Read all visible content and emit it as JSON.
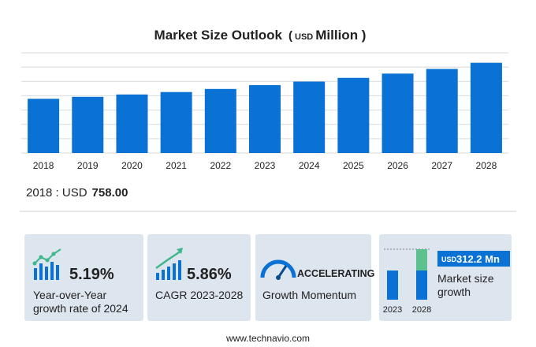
{
  "chart_data": {
    "type": "bar",
    "title": "Market Size Outlook",
    "unit_open": "(",
    "unit_currency": "USD",
    "unit_close": "Million )",
    "categories": [
      "2018",
      "2019",
      "2020",
      "2021",
      "2022",
      "2023",
      "2024",
      "2025",
      "2026",
      "2027",
      "2028"
    ],
    "values": [
      758,
      785,
      818,
      852,
      895,
      949,
      998,
      1050,
      1110,
      1175,
      1261
    ],
    "color": "#0a72d4",
    "ylim": [
      0,
      1400
    ],
    "yticks": [
      0,
      200,
      400,
      600,
      800,
      1000,
      1200,
      1400
    ],
    "grid": true
  },
  "highlight": {
    "label": "2018 : USD",
    "value": "758.00"
  },
  "cards": [
    {
      "value": "5.19%",
      "line1": "Year-over-Year",
      "line2": "growth rate of 2024"
    },
    {
      "value": "5.86%",
      "line1": "CAGR 2023-2028"
    },
    {
      "value": "ACCELERATING",
      "line1": "Growth Momentum"
    },
    {
      "currency": "USD",
      "value": "312.2 Mn",
      "line1": "Market size",
      "line2": "growth",
      "year_a": "2023",
      "year_b": "2028"
    }
  ],
  "footer": "www.technavio.com"
}
